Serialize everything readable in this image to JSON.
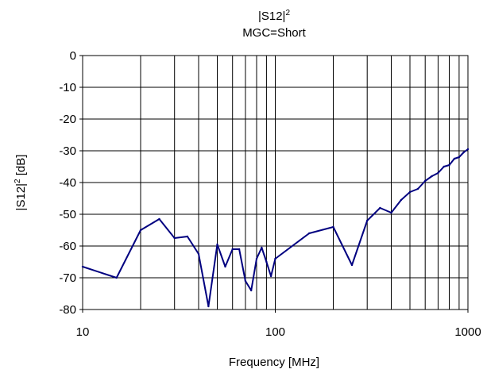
{
  "chart_data": {
    "type": "line",
    "title_main": "|S12|",
    "title_sup": "2",
    "subtitle": "MGC=Short",
    "xlabel": "Frequency [MHz]",
    "ylabel_main": "|S12|",
    "ylabel_sup": "2",
    "ylabel_unit": " [dB]",
    "xscale": "log",
    "xlim": [
      10,
      1000
    ],
    "ylim": [
      -80,
      0
    ],
    "grid": true,
    "line_color": "#000080",
    "x_ticks": [
      {
        "value": 10,
        "label": "10"
      },
      {
        "value": 100,
        "label": "100"
      },
      {
        "value": 1000,
        "label": "1000"
      }
    ],
    "y_ticks": [
      {
        "value": 0,
        "label": "0"
      },
      {
        "value": -10,
        "label": "-10"
      },
      {
        "value": -20,
        "label": "-20"
      },
      {
        "value": -30,
        "label": "-30"
      },
      {
        "value": -40,
        "label": "-40"
      },
      {
        "value": -50,
        "label": "-50"
      },
      {
        "value": -60,
        "label": "-60"
      },
      {
        "value": -70,
        "label": "-70"
      },
      {
        "value": -80,
        "label": "-80"
      }
    ],
    "series": [
      {
        "x": [
          10,
          15,
          20,
          25,
          30,
          35,
          40,
          45,
          50,
          55,
          60,
          65,
          70,
          75,
          80,
          85,
          90,
          95,
          100,
          150,
          200,
          250,
          300,
          350,
          400,
          450,
          500,
          550,
          600,
          650,
          700,
          750,
          800,
          850,
          900,
          950,
          1000
        ],
        "y": [
          -66.5,
          -70,
          -55,
          -51.5,
          -57.5,
          -57,
          -62.5,
          -79,
          -59.5,
          -66.5,
          -61,
          -61,
          -71,
          -74,
          -64,
          -60.5,
          -65,
          -69.5,
          -64,
          -56,
          -54,
          -66,
          -52,
          -48,
          -49.5,
          -45.5,
          -43,
          -42,
          -39.5,
          -38,
          -37,
          -35,
          -34.5,
          -32.5,
          -32,
          -30.5,
          -29.5
        ]
      }
    ]
  }
}
